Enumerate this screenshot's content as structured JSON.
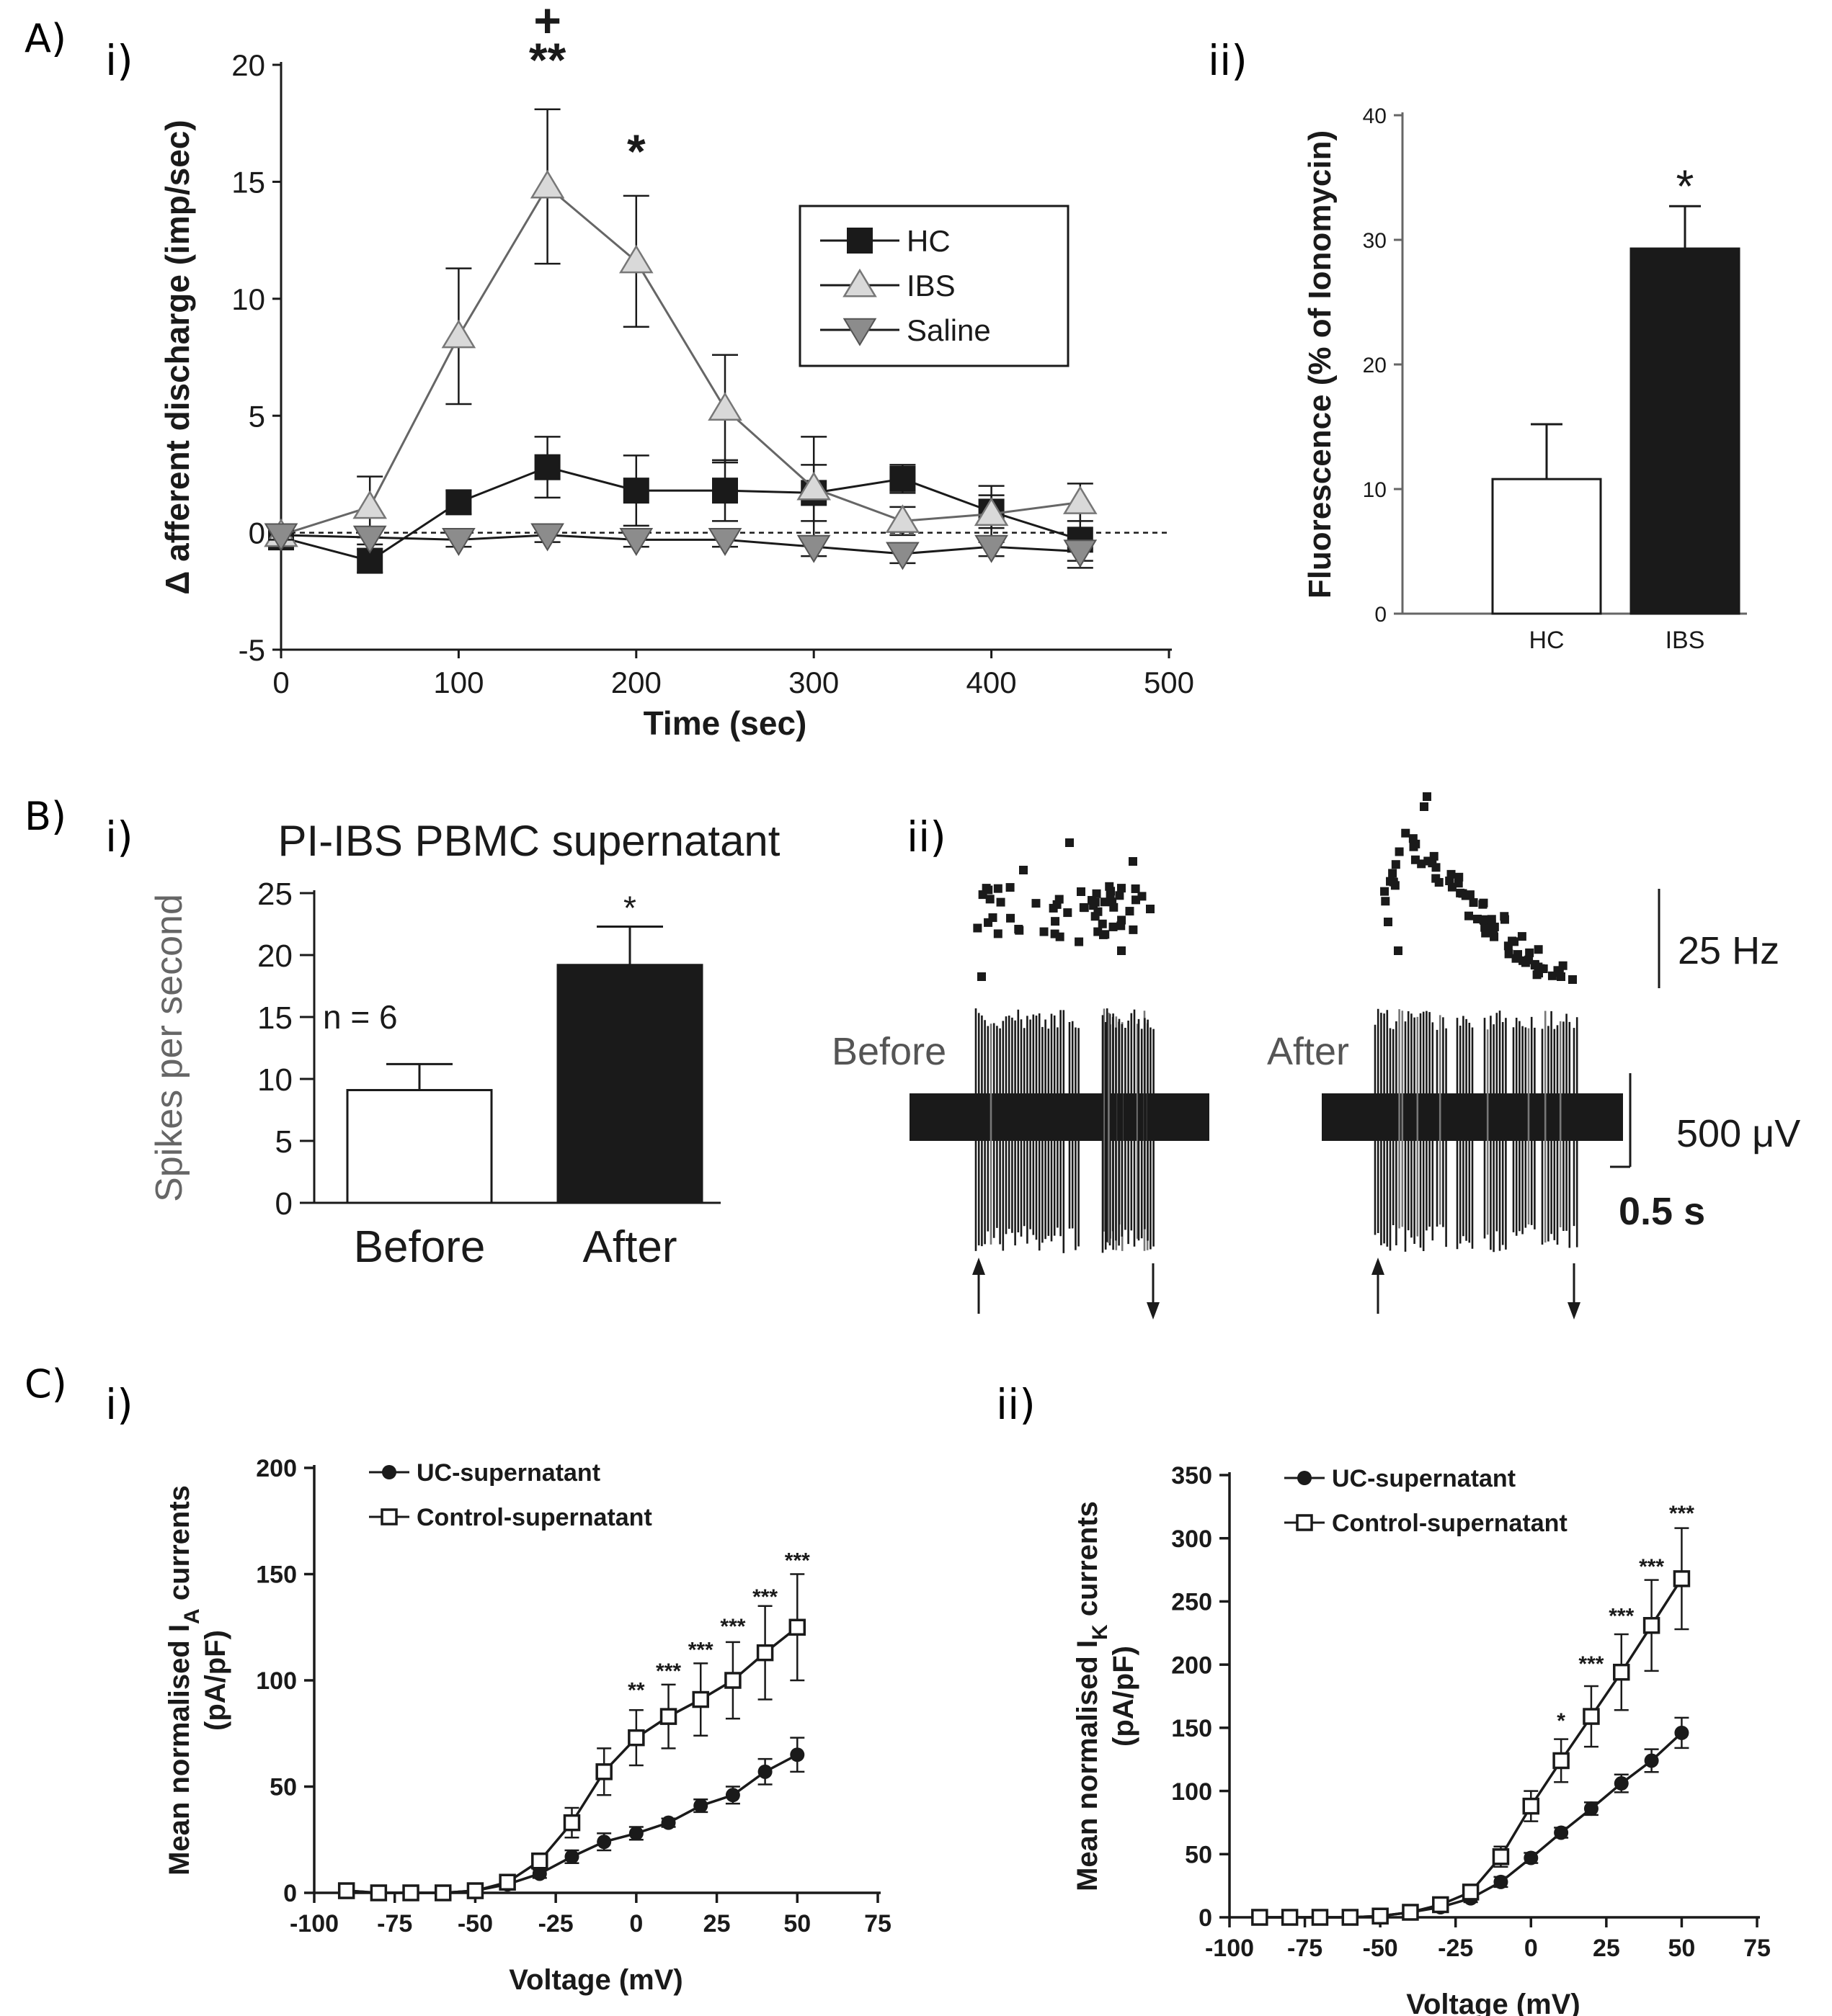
{
  "panel_labels": {
    "A": "A)",
    "B": "B)",
    "C": "C)",
    "Ai": "i)",
    "Aii": "ii)",
    "Bi": "i)",
    "Bii": "ii)",
    "Ci": "i)",
    "Cii": "ii)"
  },
  "colors": {
    "ink": "#1a1a1a",
    "ibs_fill": "#d9d9d9",
    "saline_fill": "#8c8c8c",
    "bar_dark": "#1a1a1a",
    "bar_light": "#ffffff"
  },
  "chart_data": [
    {
      "id": "A_i",
      "type": "line",
      "title": "",
      "xlabel": "Time (sec)",
      "ylabel": "Δ afferent discharge (imp/sec)",
      "xlim": [
        0,
        500
      ],
      "ylim": [
        -5,
        20
      ],
      "xticks": [
        0,
        100,
        200,
        300,
        400,
        500
      ],
      "yticks": [
        -5,
        0,
        5,
        10,
        15,
        20
      ],
      "x": [
        0,
        50,
        100,
        150,
        200,
        250,
        300,
        350,
        400,
        450
      ],
      "series": [
        {
          "name": "HC",
          "marker": "square",
          "values": [
            -0.2,
            -1.2,
            1.3,
            2.8,
            1.8,
            1.8,
            1.7,
            2.3,
            0.9,
            -0.3
          ],
          "errors": [
            0.2,
            0.5,
            0.5,
            1.3,
            1.5,
            1.3,
            1.2,
            0.6,
            0.7,
            1.2
          ]
        },
        {
          "name": "IBS",
          "marker": "triangle-up",
          "values": [
            -0.1,
            1.1,
            8.4,
            14.8,
            11.6,
            5.3,
            1.9,
            0.5,
            0.8,
            1.3
          ],
          "errors": [
            0.2,
            1.3,
            2.9,
            3.3,
            2.8,
            2.3,
            2.2,
            0.6,
            1.2,
            0.8
          ]
        },
        {
          "name": "Saline",
          "marker": "triangle-down",
          "values": [
            -0.1,
            -0.2,
            -0.3,
            -0.1,
            -0.3,
            -0.3,
            -0.6,
            -0.9,
            -0.6,
            -0.8
          ],
          "errors": [
            0.2,
            0.3,
            0.3,
            0.3,
            0.3,
            0.3,
            0.4,
            0.4,
            0.4,
            0.4
          ]
        }
      ],
      "baseline": 0,
      "annotations": [
        {
          "x": 150,
          "y": 19.5,
          "text": "**"
        },
        {
          "x": 150,
          "y": 21.2,
          "text": "+"
        },
        {
          "x": 200,
          "y": 15.6,
          "text": "*"
        }
      ]
    },
    {
      "id": "A_ii",
      "type": "bar",
      "xlabel": "",
      "ylabel": "Fluorescence (% of Ionomycin)",
      "ylim": [
        0,
        40
      ],
      "yticks": [
        0,
        10,
        20,
        30,
        40
      ],
      "categories": [
        "HC",
        "IBS"
      ],
      "values": [
        10.8,
        29.3
      ],
      "errors": [
        4.4,
        3.4
      ],
      "annotations": [
        {
          "category": "IBS",
          "text": "*"
        }
      ]
    },
    {
      "id": "B_i",
      "type": "bar",
      "title": "PI-IBS PBMC supernatant",
      "xlabel": "",
      "ylabel": "Spikes per second",
      "ylim": [
        0,
        25
      ],
      "yticks": [
        0,
        5,
        10,
        15,
        20,
        25
      ],
      "categories": [
        "Before",
        "After"
      ],
      "values": [
        9.1,
        19.2
      ],
      "errors": [
        2.1,
        3.1
      ],
      "annotations": [
        {
          "category": "After",
          "text": "*"
        },
        {
          "text": "n = 6"
        }
      ]
    },
    {
      "id": "B_ii",
      "type": "trace",
      "labels": [
        "Before",
        "After"
      ],
      "scale_freq": "25 Hz",
      "scale_voltage": "500 μV",
      "scale_time": "0.5 s"
    },
    {
      "id": "C_i",
      "type": "line",
      "xlabel": "Voltage (mV)",
      "ylabel_main": "Mean normalised I",
      "ylabel_sub": "A",
      "ylabel_tail": " currents",
      "ylabel2": "(pA/pF)",
      "xlim": [
        -100,
        75
      ],
      "ylim": [
        0,
        200
      ],
      "xticks": [
        -100,
        -75,
        -50,
        -25,
        0,
        25,
        50,
        75
      ],
      "yticks": [
        0,
        50,
        100,
        150,
        200
      ],
      "x": [
        -90,
        -80,
        -70,
        -60,
        -50,
        -40,
        -30,
        -20,
        -10,
        0,
        10,
        20,
        30,
        40,
        50
      ],
      "series": [
        {
          "name": "UC-supernatant",
          "marker": "circle",
          "values": [
            1,
            0,
            0,
            0,
            1,
            4,
            9,
            17,
            24,
            28,
            33,
            41,
            46,
            57,
            65
          ],
          "errors": [
            1,
            1,
            1,
            1,
            1,
            1,
            2,
            3,
            4,
            3,
            2,
            3,
            4,
            6,
            8
          ]
        },
        {
          "name": "Control-supernatant",
          "marker": "square-open",
          "values": [
            1,
            0,
            0,
            0,
            1,
            5,
            15,
            33,
            57,
            73,
            83,
            91,
            100,
            113,
            125
          ],
          "errors": [
            1,
            1,
            1,
            1,
            1,
            2,
            3,
            7,
            11,
            13,
            15,
            17,
            18,
            22,
            25
          ]
        }
      ],
      "annotations": [
        {
          "x": 0,
          "y": 92,
          "text": "**"
        },
        {
          "x": 10,
          "y": 101,
          "text": "***"
        },
        {
          "x": 20,
          "y": 111,
          "text": "***"
        },
        {
          "x": 30,
          "y": 122,
          "text": "***"
        },
        {
          "x": 40,
          "y": 136,
          "text": "***"
        },
        {
          "x": 50,
          "y": 153,
          "text": "***"
        }
      ]
    },
    {
      "id": "C_ii",
      "type": "line",
      "xlabel": "Voltage (mV)",
      "ylabel_main": "Mean normalised I",
      "ylabel_sub": "K",
      "ylabel_tail": " currents",
      "ylabel2": "(pA/pF)",
      "xlim": [
        -100,
        75
      ],
      "ylim": [
        0,
        350
      ],
      "xticks": [
        -100,
        -75,
        -50,
        -25,
        0,
        25,
        50,
        75
      ],
      "yticks": [
        0,
        50,
        100,
        150,
        200,
        250,
        300,
        350
      ],
      "x": [
        -90,
        -80,
        -70,
        -60,
        -50,
        -40,
        -30,
        -20,
        -10,
        0,
        10,
        20,
        30,
        40,
        50
      ],
      "series": [
        {
          "name": "UC-supernatant",
          "marker": "circle",
          "values": [
            0,
            0,
            0,
            0,
            1,
            4,
            8,
            15,
            28,
            47,
            67,
            86,
            106,
            124,
            146
          ],
          "errors": [
            1,
            1,
            1,
            1,
            1,
            1,
            2,
            3,
            4,
            4,
            4,
            5,
            7,
            9,
            12
          ]
        },
        {
          "name": "Control-supernatant",
          "marker": "square-open",
          "values": [
            0,
            0,
            0,
            0,
            1,
            4,
            10,
            20,
            48,
            88,
            124,
            159,
            194,
            231,
            268
          ],
          "errors": [
            1,
            1,
            1,
            1,
            1,
            2,
            3,
            5,
            8,
            12,
            17,
            24,
            30,
            36,
            40
          ]
        }
      ],
      "annotations": [
        {
          "x": 10,
          "y": 150,
          "text": "*"
        },
        {
          "x": 20,
          "y": 195,
          "text": "***"
        },
        {
          "x": 30,
          "y": 233,
          "text": "***"
        },
        {
          "x": 40,
          "y": 272,
          "text": "***"
        },
        {
          "x": 50,
          "y": 314,
          "text": "***"
        }
      ]
    }
  ]
}
